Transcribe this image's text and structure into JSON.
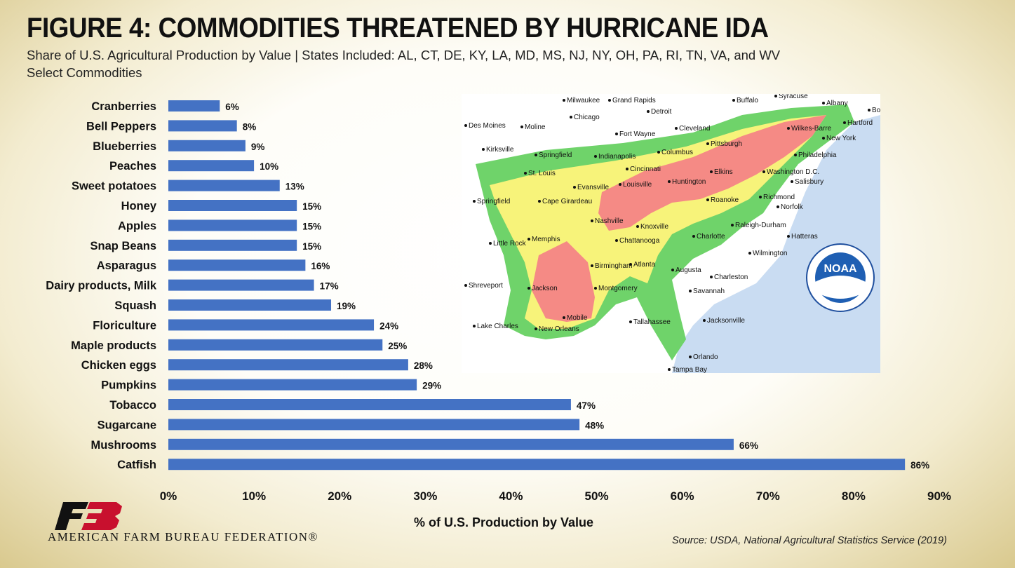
{
  "title": "FIGURE 4: COMMODITIES THREATENED BY HURRICANE IDA",
  "subtitle_line1": "Share of U.S. Agricultural Production by Value | States Included: AL, CT, DE, KY, LA, MD, MS, NJ, NY, OH, PA, RI, TN, VA, and WV",
  "subtitle_line2": "Select Commodities",
  "footer": {
    "organization": "AMERICAN FARM BUREAU FEDERATION®",
    "source": "Source: USDA, National Agricultural Statistics Service (2019)"
  },
  "map": {
    "logo_text": "NOAA",
    "cities": [
      "Milwaukee",
      "Grand Rapids",
      "Buffalo",
      "Syracuse",
      "Albany",
      "Boston",
      "Detroit",
      "Chicago",
      "Des Moines",
      "Moline",
      "Fort Wayne",
      "Cleveland",
      "Hartford",
      "Wilkes-Barre",
      "New York",
      "Kirksville",
      "Springfield",
      "Indianapolis",
      "Columbus",
      "Pittsburgh",
      "Philadelphia",
      "St. Louis",
      "Cincinnati",
      "Elkins",
      "Washington D.C.",
      "Evansville",
      "Louisville",
      "Huntington",
      "Salisbury",
      "Springfield",
      "Cape Girardeau",
      "Roanoke",
      "Richmond",
      "Norfolk",
      "Nashville",
      "Knoxville",
      "Raleigh-Durham",
      "Little Rock",
      "Memphis",
      "Chattanooga",
      "Charlotte",
      "Hatteras",
      "Birmingham",
      "Atlanta",
      "Augusta",
      "Wilmington",
      "Shreveport",
      "Jackson",
      "Montgomery",
      "Charleston",
      "Savannah",
      "Mobile",
      "New Orleans",
      "Lake Charles",
      "Tallahassee",
      "Jacksonville",
      "Orlando",
      "Tampa Bay"
    ],
    "colors": {
      "water": "#c9dcf2",
      "land": "#ffffff",
      "green": "#6fd36a",
      "yellow": "#f7f37a",
      "red": "#f58a85"
    }
  },
  "chart_data": {
    "type": "bar",
    "orientation": "horizontal",
    "categories": [
      "Cranberries",
      "Bell Peppers",
      "Blueberries",
      "Peaches",
      "Sweet potatoes",
      "Honey",
      "Apples",
      "Snap Beans",
      "Asparagus",
      "Dairy products, Milk",
      "Squash",
      "Floriculture",
      "Maple products",
      "Chicken eggs",
      "Pumpkins",
      "Tobacco",
      "Sugarcane",
      "Mushrooms",
      "Catfish"
    ],
    "values": [
      6,
      8,
      9,
      10,
      13,
      15,
      15,
      15,
      16,
      17,
      19,
      24,
      25,
      28,
      29,
      47,
      48,
      66,
      86
    ],
    "value_labels": [
      "6%",
      "8%",
      "9%",
      "10%",
      "13%",
      "15%",
      "15%",
      "15%",
      "16%",
      "17%",
      "19%",
      "24%",
      "25%",
      "28%",
      "29%",
      "47%",
      "48%",
      "66%",
      "86%"
    ],
    "xlabel": "% of U.S. Production by Value",
    "xlim": [
      0,
      90
    ],
    "xticks": [
      "0%",
      "10%",
      "20%",
      "30%",
      "40%",
      "50%",
      "60%",
      "70%",
      "80%",
      "90%"
    ],
    "grid": false,
    "bar_color": "#4472c4"
  }
}
